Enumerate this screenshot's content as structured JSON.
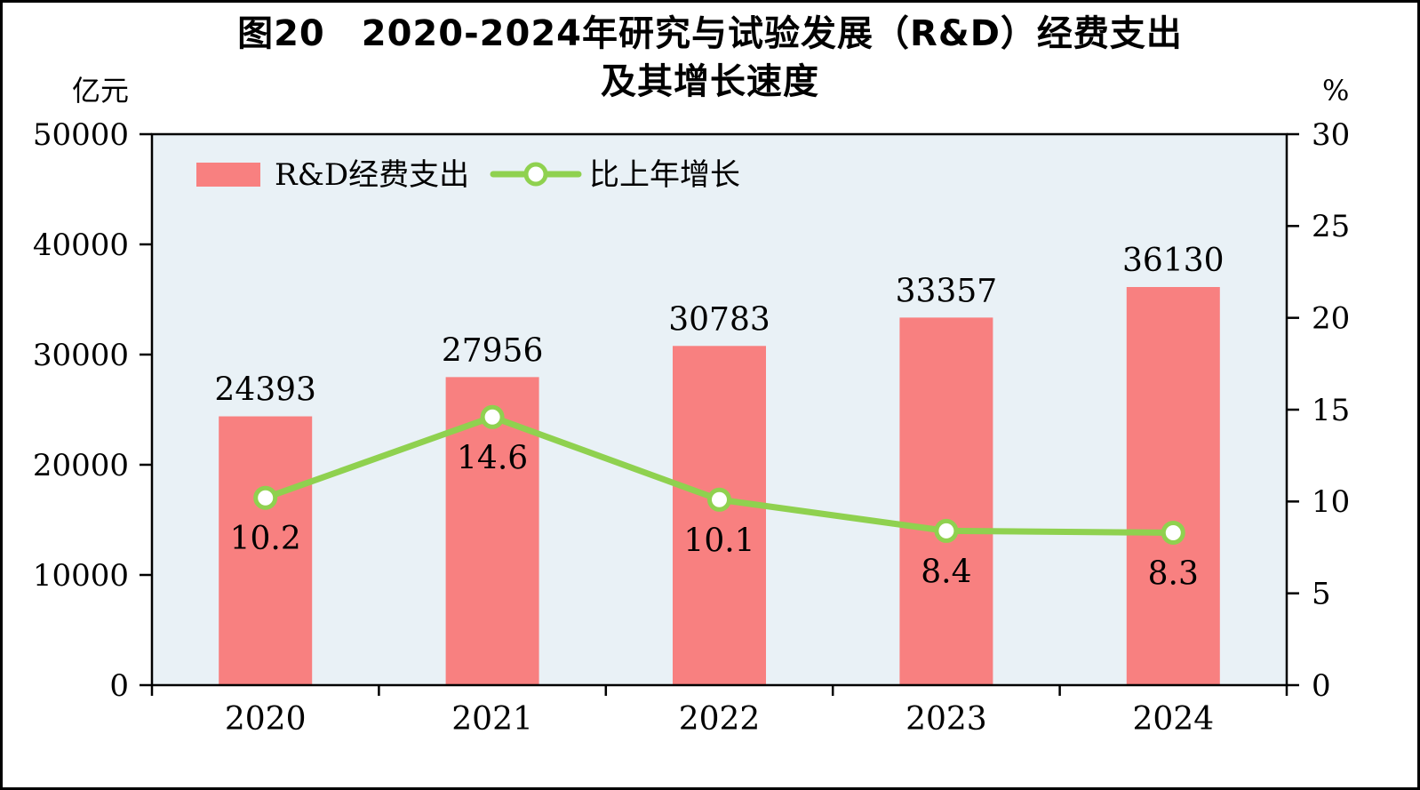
{
  "chart_data": {
    "type": "bar+line",
    "title": "图20 2020-2024年研究与试验发展（R&D）经费支出及其增长速度",
    "title_lines": [
      "图20　2020-2024年研究与试验发展（R&D）经费支出",
      "及其增长速度"
    ],
    "categories": [
      "2020",
      "2021",
      "2022",
      "2023",
      "2024"
    ],
    "series": [
      {
        "name": "R&D经费支出",
        "type": "bar",
        "axis": "left",
        "values": [
          24393,
          27956,
          30783,
          33357,
          36130
        ],
        "labels": [
          "24393",
          "27956",
          "30783",
          "33357",
          "36130"
        ],
        "color": "#f88080"
      },
      {
        "name": "比上年增长",
        "type": "line",
        "axis": "right",
        "values": [
          10.2,
          14.6,
          10.1,
          8.4,
          8.3
        ],
        "labels": [
          "10.2",
          "14.6",
          "10.1",
          "8.4",
          "8.3"
        ],
        "color": "#8fd14f",
        "marker_fill": "#ffffff"
      }
    ],
    "y_left": {
      "label": "亿元",
      "min": 0,
      "max": 50000,
      "step": 10000,
      "ticks": [
        "0",
        "10000",
        "20000",
        "30000",
        "40000",
        "50000"
      ]
    },
    "y_right": {
      "label": "%",
      "min": 0,
      "max": 30,
      "step": 5,
      "ticks": [
        "0",
        "5",
        "10",
        "15",
        "20",
        "25",
        "30"
      ]
    },
    "plot_bg": "#e9f1f6",
    "grid": "off",
    "legend_position": "top-left-inside",
    "legend": [
      "R&D经费支出",
      "比上年增长"
    ]
  }
}
